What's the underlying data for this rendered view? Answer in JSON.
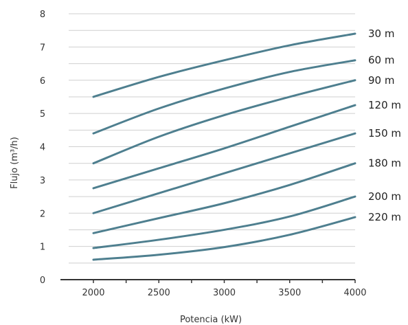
{
  "chart_data": {
    "type": "line",
    "title": "",
    "xlabel": "Potencia (kW)",
    "ylabel": "Flujo (m³/h)",
    "xlim": [
      1750,
      4000
    ],
    "ylim": [
      0,
      8
    ],
    "xticks": [
      "2000",
      "2500",
      "3000",
      "3500",
      "4000"
    ],
    "yticks": [
      "0",
      "1",
      "2",
      "3",
      "4",
      "5",
      "6",
      "7",
      "8"
    ],
    "grid": "horizontal",
    "line_color": "#4e7f8f",
    "series": [
      {
        "name": "30 m",
        "x": [
          2000,
          2500,
          3000,
          3500,
          4000
        ],
        "y": [
          5.5,
          6.1,
          6.6,
          7.05,
          7.4
        ]
      },
      {
        "name": "60 m",
        "x": [
          2000,
          2500,
          3000,
          3500,
          4000
        ],
        "y": [
          4.4,
          5.15,
          5.75,
          6.25,
          6.6
        ]
      },
      {
        "name": "90 m",
        "x": [
          2000,
          2500,
          3000,
          3500,
          4000
        ],
        "y": [
          3.5,
          4.3,
          4.95,
          5.5,
          6.0
        ]
      },
      {
        "name": "120 m",
        "x": [
          2000,
          2500,
          3000,
          3500,
          4000
        ],
        "y": [
          2.75,
          3.35,
          3.95,
          4.6,
          5.25
        ]
      },
      {
        "name": "150 m",
        "x": [
          2000,
          2500,
          3000,
          3500,
          4000
        ],
        "y": [
          2.0,
          2.6,
          3.2,
          3.8,
          4.4
        ]
      },
      {
        "name": "180 m",
        "x": [
          2000,
          2500,
          3000,
          3500,
          4000
        ],
        "y": [
          1.4,
          1.85,
          2.3,
          2.85,
          3.5
        ]
      },
      {
        "name": "200 m",
        "x": [
          2000,
          2500,
          3000,
          3500,
          4000
        ],
        "y": [
          0.95,
          1.2,
          1.5,
          1.9,
          2.5
        ]
      },
      {
        "name": "220 m",
        "x": [
          2000,
          2500,
          3000,
          3500,
          4000
        ],
        "y": [
          0.6,
          0.75,
          0.98,
          1.35,
          1.88
        ]
      }
    ]
  }
}
